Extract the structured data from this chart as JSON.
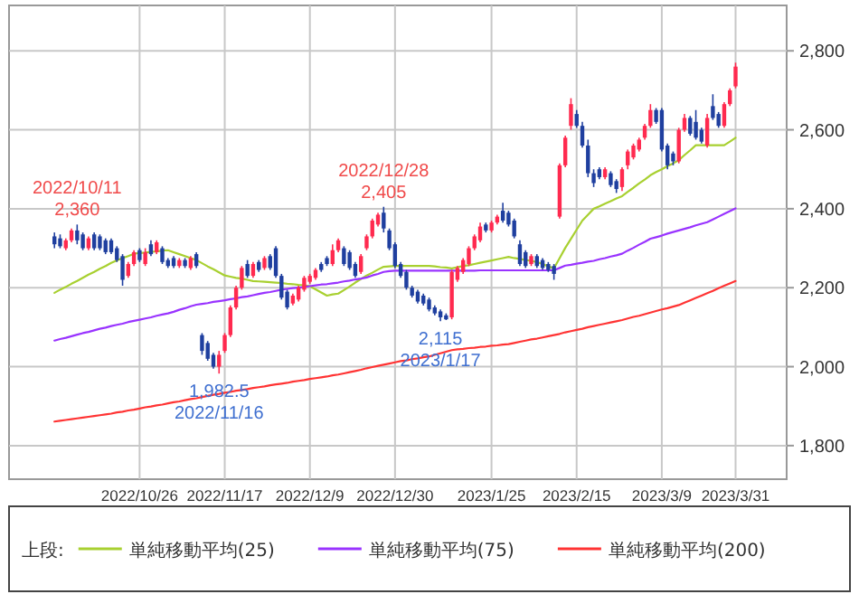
{
  "chart_data": {
    "type": "candlestick",
    "categories": [
      null,
      null,
      null,
      null,
      null,
      null,
      null,
      null,
      null,
      null,
      null,
      null,
      null,
      null,
      null,
      "2022/10/26",
      null,
      null,
      null,
      null,
      null,
      null,
      null,
      null,
      null,
      null,
      null,
      null,
      null,
      null,
      "2022/11/17",
      null,
      null,
      null,
      null,
      null,
      null,
      null,
      null,
      null,
      null,
      null,
      null,
      null,
      null,
      "2022/12/9",
      null,
      null,
      null,
      null,
      null,
      null,
      null,
      null,
      null,
      null,
      null,
      null,
      null,
      null,
      "2022/12/30",
      null,
      null,
      null,
      null,
      null,
      null,
      null,
      null,
      null,
      null,
      null,
      null,
      null,
      null,
      null,
      null,
      "2023/1/25",
      null,
      null,
      null,
      null,
      null,
      null,
      null,
      null,
      null,
      null,
      null,
      null,
      null,
      null,
      "2023/2/15",
      null,
      null,
      null,
      null,
      null,
      null,
      null,
      null,
      null,
      null,
      null,
      null,
      null,
      null,
      "2023/3/9",
      null,
      null,
      null,
      null,
      null,
      null,
      null,
      null,
      null,
      null,
      null,
      null,
      "2023/3/31"
    ],
    "ohlc": [
      [
        2330,
        2340,
        2300,
        2310
      ],
      [
        2325,
        2335,
        2300,
        2305
      ],
      [
        2300,
        2325,
        2295,
        2320
      ],
      [
        2320,
        2350,
        2315,
        2345
      ],
      [
        2345,
        2360,
        2310,
        2320
      ],
      [
        2335,
        2340,
        2295,
        2300
      ],
      [
        2300,
        2330,
        2295,
        2325
      ],
      [
        2335,
        2340,
        2295,
        2300
      ],
      [
        2330,
        2335,
        2295,
        2300
      ],
      [
        2320,
        2325,
        2285,
        2290
      ],
      [
        2320,
        2325,
        2285,
        2290
      ],
      [
        2300,
        2305,
        2265,
        2270
      ],
      [
        2280,
        2285,
        2205,
        2220
      ],
      [
        2230,
        2265,
        2225,
        2260
      ],
      [
        2260,
        2295,
        2255,
        2290
      ],
      [
        2295,
        2300,
        2265,
        2270
      ],
      [
        2260,
        2300,
        2255,
        2290
      ],
      [
        2310,
        2320,
        2280,
        2285
      ],
      [
        2290,
        2320,
        2285,
        2315
      ],
      [
        2300,
        2305,
        2260,
        2265
      ],
      [
        2270,
        2275,
        2250,
        2255
      ],
      [
        2275,
        2280,
        2250,
        2255
      ],
      [
        2255,
        2275,
        2250,
        2270
      ],
      [
        2270,
        2275,
        2250,
        2255
      ],
      [
        2250,
        2280,
        2245,
        2275
      ],
      [
        2285,
        2290,
        2250,
        2255
      ],
      [
        2080,
        2085,
        2030,
        2040
      ],
      [
        2060,
        2065,
        2015,
        2020
      ],
      [
        2030,
        2035,
        1995,
        2000
      ],
      [
        2000,
        2040,
        1982.5,
        2030
      ],
      [
        2040,
        2085,
        2035,
        2080
      ],
      [
        2080,
        2155,
        2075,
        2150
      ],
      [
        2150,
        2205,
        2145,
        2200
      ],
      [
        2200,
        2255,
        2195,
        2250
      ],
      [
        2260,
        2270,
        2225,
        2230
      ],
      [
        2230,
        2265,
        2225,
        2260
      ],
      [
        2265,
        2270,
        2240,
        2245
      ],
      [
        2250,
        2280,
        2245,
        2275
      ],
      [
        2280,
        2285,
        2245,
        2250
      ],
      [
        2300,
        2305,
        2225,
        2230
      ],
      [
        2230,
        2235,
        2170,
        2175
      ],
      [
        2190,
        2195,
        2145,
        2150
      ],
      [
        2160,
        2185,
        2155,
        2180
      ],
      [
        2170,
        2205,
        2165,
        2200
      ],
      [
        2195,
        2230,
        2190,
        2225
      ],
      [
        2215,
        2235,
        2210,
        2230
      ],
      [
        2225,
        2250,
        2220,
        2245
      ],
      [
        2260,
        2265,
        2240,
        2245
      ],
      [
        2275,
        2280,
        2255,
        2260
      ],
      [
        2260,
        2310,
        2255,
        2295
      ],
      [
        2295,
        2325,
        2290,
        2320
      ],
      [
        2300,
        2305,
        2255,
        2260
      ],
      [
        2290,
        2295,
        2245,
        2250
      ],
      [
        2260,
        2265,
        2225,
        2230
      ],
      [
        2240,
        2285,
        2235,
        2280
      ],
      [
        2300,
        2335,
        2295,
        2330
      ],
      [
        2330,
        2375,
        2325,
        2370
      ],
      [
        2360,
        2390,
        2355,
        2385
      ],
      [
        2390,
        2405,
        2340,
        2350
      ],
      [
        2345,
        2350,
        2295,
        2300
      ],
      [
        2310,
        2315,
        2250,
        2255
      ],
      [
        2260,
        2265,
        2225,
        2230
      ],
      [
        2240,
        2245,
        2195,
        2200
      ],
      [
        2200,
        2205,
        2175,
        2180
      ],
      [
        2190,
        2195,
        2160,
        2165
      ],
      [
        2180,
        2185,
        2155,
        2160
      ],
      [
        2170,
        2175,
        2140,
        2145
      ],
      [
        2150,
        2155,
        2130,
        2135
      ],
      [
        2140,
        2145,
        2115,
        2125
      ],
      [
        2130,
        2135,
        2118,
        2120
      ],
      [
        2125,
        2245,
        2120,
        2240
      ],
      [
        2220,
        2255,
        2215,
        2250
      ],
      [
        2240,
        2275,
        2235,
        2270
      ],
      [
        2260,
        2305,
        2255,
        2300
      ],
      [
        2300,
        2335,
        2295,
        2330
      ],
      [
        2320,
        2365,
        2315,
        2355
      ],
      [
        2360,
        2365,
        2340,
        2345
      ],
      [
        2345,
        2370,
        2340,
        2365
      ],
      [
        2365,
        2385,
        2360,
        2380
      ],
      [
        2395,
        2415,
        2365,
        2370
      ],
      [
        2390,
        2395,
        2355,
        2360
      ],
      [
        2370,
        2375,
        2325,
        2330
      ],
      [
        2310,
        2320,
        2255,
        2260
      ],
      [
        2290,
        2295,
        2250,
        2255
      ],
      [
        2260,
        2285,
        2255,
        2280
      ],
      [
        2280,
        2285,
        2250,
        2255
      ],
      [
        2270,
        2275,
        2245,
        2250
      ],
      [
        2260,
        2265,
        2240,
        2245
      ],
      [
        2255,
        2260,
        2220,
        2235
      ],
      [
        2380,
        2515,
        2375,
        2510
      ],
      [
        2510,
        2585,
        2505,
        2580
      ],
      [
        2610,
        2680,
        2600,
        2665
      ],
      [
        2640,
        2650,
        2605,
        2610
      ],
      [
        2610,
        2620,
        2555,
        2560
      ],
      [
        2560,
        2575,
        2480,
        2490
      ],
      [
        2490,
        2500,
        2455,
        2465
      ],
      [
        2500,
        2505,
        2475,
        2480
      ],
      [
        2480,
        2505,
        2475,
        2500
      ],
      [
        2490,
        2495,
        2455,
        2460
      ],
      [
        2470,
        2475,
        2440,
        2450
      ],
      [
        2455,
        2505,
        2445,
        2500
      ],
      [
        2510,
        2550,
        2500,
        2545
      ],
      [
        2530,
        2565,
        2525,
        2560
      ],
      [
        2550,
        2580,
        2545,
        2575
      ],
      [
        2580,
        2615,
        2575,
        2610
      ],
      [
        2610,
        2665,
        2605,
        2650
      ],
      [
        2650,
        2655,
        2615,
        2620
      ],
      [
        2650,
        2655,
        2545,
        2550
      ],
      [
        2560,
        2565,
        2500,
        2510
      ],
      [
        2540,
        2545,
        2510,
        2520
      ],
      [
        2520,
        2605,
        2515,
        2600
      ],
      [
        2600,
        2640,
        2595,
        2630
      ],
      [
        2630,
        2635,
        2585,
        2590
      ],
      [
        2620,
        2650,
        2575,
        2580
      ],
      [
        2600,
        2605,
        2565,
        2570
      ],
      [
        2560,
        2640,
        2555,
        2630
      ],
      [
        2660,
        2690,
        2625,
        2630
      ],
      [
        2640,
        2645,
        2605,
        2610
      ],
      [
        2610,
        2670,
        2605,
        2665
      ],
      [
        2665,
        2705,
        2660,
        2700
      ],
      [
        2710,
        2770,
        2705,
        2760
      ]
    ],
    "series": [
      {
        "name": "単純移動平均(25)",
        "type": "line",
        "color": "#a8d030",
        "values": [
          2187,
          2195,
          2202,
          2210,
          2217,
          2225,
          2233,
          2240,
          2248,
          2255,
          2263,
          2269,
          2275,
          2280,
          2286,
          2288,
          2289,
          2291,
          2292,
          2294,
          2295,
          2290,
          2285,
          2280,
          2275,
          2270,
          2262,
          2254,
          2247,
          2239,
          2231,
          2228,
          2225,
          2223,
          2220,
          2217,
          2216,
          2215,
          2214,
          2213,
          2212,
          2210,
          2209,
          2207,
          2206,
          2204,
          2196,
          2188,
          2180,
          2183,
          2185,
          2194,
          2203,
          2213,
          2222,
          2231,
          2238,
          2246,
          2253,
          2254,
          2255,
          2255,
          2255,
          2255,
          2255,
          2255,
          2255,
          2254,
          2252,
          2251,
          2249,
          2252,
          2255,
          2257,
          2260,
          2263,
          2266,
          2269,
          2272,
          2275,
          2278,
          2275,
          2273,
          2270,
          2268,
          2265,
          2260,
          2254,
          2249,
          2275,
          2301,
          2324,
          2347,
          2370,
          2385,
          2400,
          2406,
          2413,
          2419,
          2426,
          2432,
          2443,
          2453,
          2464,
          2474,
          2485,
          2493,
          2500,
          2508,
          2515,
          2523,
          2536,
          2548,
          2561,
          2561,
          2561,
          2561,
          2561,
          2561,
          2570,
          2580
        ]
      },
      {
        "name": "単純移動平均(75)",
        "type": "line",
        "color": "#9933ff",
        "values": [
          2066,
          2070,
          2073,
          2077,
          2081,
          2085,
          2088,
          2092,
          2096,
          2099,
          2103,
          2106,
          2109,
          2113,
          2116,
          2119,
          2122,
          2125,
          2129,
          2132,
          2135,
          2139,
          2144,
          2148,
          2153,
          2157,
          2159,
          2161,
          2164,
          2166,
          2168,
          2171,
          2173,
          2176,
          2178,
          2181,
          2184,
          2187,
          2189,
          2192,
          2195,
          2197,
          2199,
          2200,
          2202,
          2204,
          2206,
          2208,
          2209,
          2211,
          2213,
          2216,
          2218,
          2221,
          2223,
          2226,
          2231,
          2235,
          2240,
          2242,
          2243,
          2243,
          2243,
          2243,
          2243,
          2243,
          2243,
          2243,
          2243,
          2243,
          2243,
          2243,
          2243,
          2243,
          2243,
          2244,
          2244,
          2244,
          2244,
          2244,
          2244,
          2244,
          2244,
          2244,
          2244,
          2244,
          2244,
          2244,
          2244,
          2250,
          2256,
          2258,
          2261,
          2263,
          2266,
          2268,
          2272,
          2275,
          2279,
          2282,
          2286,
          2294,
          2301,
          2309,
          2316,
          2324,
          2328,
          2332,
          2337,
          2341,
          2345,
          2349,
          2353,
          2358,
          2362,
          2366,
          2373,
          2380,
          2387,
          2394,
          2401
        ]
      },
      {
        "name": "単純移動平均(200)",
        "type": "line",
        "color": "#ff3333",
        "values": [
          1861,
          1863,
          1865,
          1867,
          1869,
          1871,
          1873,
          1875,
          1877,
          1879,
          1881,
          1884,
          1886,
          1889,
          1891,
          1894,
          1897,
          1899,
          1902,
          1904,
          1907,
          1910,
          1912,
          1915,
          1918,
          1920,
          1923,
          1926,
          1929,
          1931,
          1934,
          1936,
          1939,
          1941,
          1943,
          1946,
          1948,
          1950,
          1953,
          1955,
          1957,
          1959,
          1962,
          1964,
          1966,
          1969,
          1971,
          1973,
          1975,
          1978,
          1980,
          1983,
          1986,
          1989,
          1992,
          1996,
          1999,
          2002,
          2005,
          2008,
          2011,
          2014,
          2016,
          2019,
          2021,
          2024,
          2026,
          2030,
          2034,
          2038,
          2042,
          2044,
          2045,
          2047,
          2048,
          2050,
          2051,
          2053,
          2054,
          2056,
          2057,
          2060,
          2063,
          2066,
          2069,
          2071,
          2074,
          2077,
          2080,
          2083,
          2087,
          2090,
          2093,
          2096,
          2100,
          2103,
          2106,
          2109,
          2112,
          2115,
          2118,
          2122,
          2126,
          2129,
          2133,
          2137,
          2141,
          2145,
          2148,
          2152,
          2156,
          2162,
          2168,
          2174,
          2180,
          2186,
          2192,
          2199,
          2205,
          2211,
          2217
        ]
      }
    ],
    "ylim": [
      1715,
      2915
    ],
    "yticks": [
      {
        "value": 1800,
        "label": "1,800"
      },
      {
        "value": 2000,
        "label": "2,000"
      },
      {
        "value": 2200,
        "label": "2,200"
      },
      {
        "value": 2400,
        "label": "2,400"
      },
      {
        "value": 2600,
        "label": "2,600"
      },
      {
        "value": 2800,
        "label": "2,800"
      }
    ],
    "annotations": [
      {
        "text": "2022/10/11",
        "y": 2360
      },
      {
        "text": "2,360",
        "y": 2360
      },
      {
        "text": "1,982.5",
        "y": 1982.5
      },
      {
        "text": "2022/11/16",
        "y": 1982.5
      },
      {
        "text": "2022/12/28",
        "y": 2405
      },
      {
        "text": "2,405",
        "y": 2405
      },
      {
        "text": "2,115",
        "y": 2115
      },
      {
        "text": "2023/1/17",
        "y": 2115
      }
    ],
    "legend": "bottom",
    "legend_title": "上段:",
    "grid": true
  }
}
